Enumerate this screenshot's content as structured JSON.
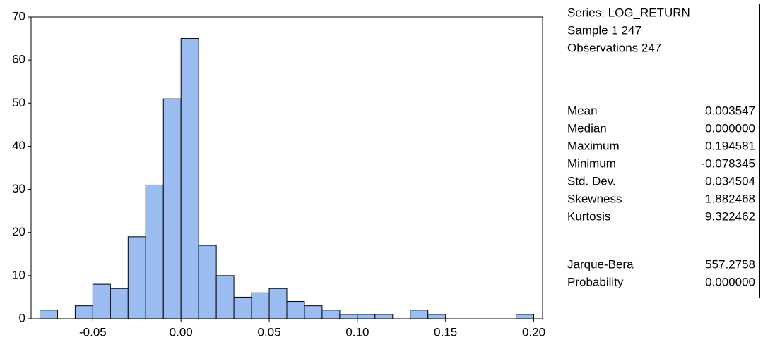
{
  "chart_data": {
    "type": "histogram",
    "bins": [
      -0.08,
      -0.07,
      -0.06,
      -0.05,
      -0.04,
      -0.03,
      -0.02,
      -0.01,
      0,
      0.01,
      0.02,
      0.03,
      0.04,
      0.05,
      0.06,
      0.07,
      0.08,
      0.09,
      0.1,
      0.11,
      0.12,
      0.13,
      0.14,
      0.15,
      0.16,
      0.17,
      0.18,
      0.19,
      0.2
    ],
    "values": [
      2,
      0,
      3,
      8,
      7,
      19,
      31,
      51,
      65,
      17,
      10,
      5,
      6,
      7,
      4,
      3,
      2,
      1,
      1,
      1,
      0,
      2,
      1,
      0,
      0,
      0,
      0,
      1
    ],
    "color": "#9abcf0",
    "xlim": [
      -0.085,
      0.205
    ],
    "xticks": [
      -0.05,
      {
        "value": 0,
        "label": "0.00"
      },
      0.05,
      {
        "value": 0.1,
        "label": "0.10"
      },
      0.15,
      {
        "value": 0.2,
        "label": "0.20"
      }
    ],
    "ylim": [
      0,
      70
    ],
    "yticks": [
      0,
      10,
      20,
      30,
      40,
      50,
      60,
      70
    ],
    "grid": false
  },
  "stats": {
    "header": [
      "Series: LOG_RETURN",
      "Sample 1 247",
      "Observations 247"
    ],
    "rows": [
      [
        "Mean",
        "0.003547"
      ],
      [
        "Median",
        "0.000000"
      ],
      [
        "Maximum",
        "0.194581"
      ],
      [
        "Minimum",
        "-0.078345"
      ],
      [
        "Std. Dev.",
        "0.034504"
      ],
      [
        "Skewness",
        "1.882468"
      ],
      [
        "Kurtosis",
        "9.322462"
      ]
    ],
    "tests": [
      [
        "Jarque-Bera",
        "557.2758"
      ],
      [
        "Probability",
        "0.000000"
      ]
    ]
  }
}
